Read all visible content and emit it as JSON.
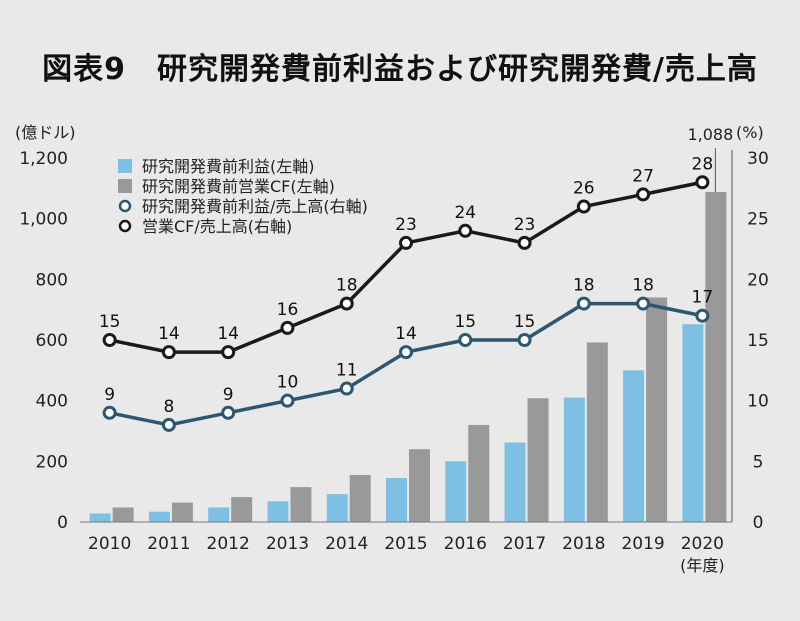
{
  "title": "図表9　研究開発費前利益および研究開発費/売上高",
  "chart_data": {
    "type": "bar+line",
    "title": "図表9　研究開発費前利益および研究開発費/売上高",
    "categories": [
      "2010",
      "2011",
      "2012",
      "2013",
      "2014",
      "2015",
      "2016",
      "2017",
      "2018",
      "2019",
      "2020"
    ],
    "x_unit": "(年度)",
    "left_axis": {
      "unit": "(億ドル)",
      "min": 0,
      "max": 1200,
      "ticks": [
        "0",
        "200",
        "400",
        "600",
        "800",
        "1,000",
        "1,200"
      ],
      "tick_values": [
        0,
        200,
        400,
        600,
        800,
        1000,
        1200
      ]
    },
    "right_axis": {
      "unit": "(%)",
      "min": 0,
      "max": 30,
      "ticks": [
        "0",
        "5",
        "10",
        "15",
        "20",
        "25",
        "30"
      ],
      "tick_values": [
        0,
        5,
        10,
        15,
        20,
        25,
        30
      ]
    },
    "bar_series": [
      {
        "name": "研究開発費前利益(左軸)",
        "color": "#7ec0e4",
        "values": [
          28,
          34,
          48,
          68,
          92,
          145,
          200,
          262,
          410,
          500,
          652
        ]
      },
      {
        "name": "研究開発費前営業CF(左軸)",
        "color": "#999999",
        "values": [
          48,
          64,
          82,
          115,
          155,
          240,
          320,
          408,
          592,
          740,
          1088
        ]
      }
    ],
    "bar_annotation": "1,088",
    "line_series": [
      {
        "name": "研究開発費前利益/売上高(右軸)",
        "color": "#2d5670",
        "values": [
          9,
          8,
          9,
          10,
          11,
          14,
          15,
          15,
          18,
          18,
          17
        ],
        "labels": [
          "9",
          "8",
          "9",
          "10",
          "11",
          "14",
          "15",
          "15",
          "18",
          "18",
          "17"
        ]
      },
      {
        "name": "営業CF/売上高(右軸)",
        "color": "#1a1a1a",
        "values": [
          15,
          14,
          14,
          16,
          18,
          23,
          24,
          23,
          26,
          27,
          28
        ],
        "labels": [
          "15",
          "14",
          "14",
          "16",
          "18",
          "23",
          "24",
          "23",
          "26",
          "27",
          "28"
        ]
      }
    ],
    "legend_position": "top-left",
    "grid": false
  }
}
